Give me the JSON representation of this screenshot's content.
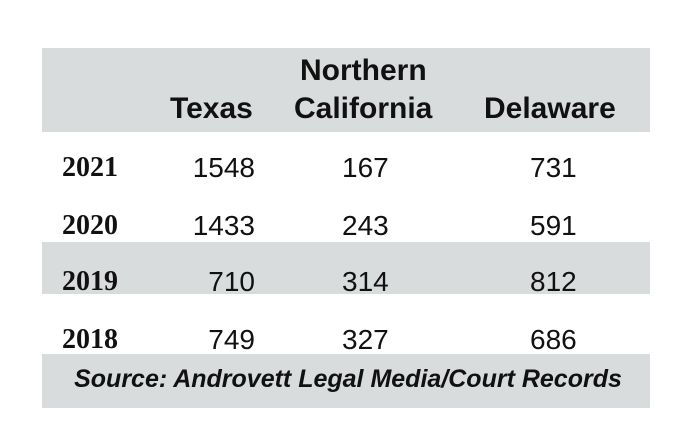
{
  "chart_data": {
    "type": "table",
    "columns": [
      "",
      "Texas",
      "Northern California",
      "Delaware"
    ],
    "header_lines": {
      "texas": "Texas",
      "nc_line1": "Northern",
      "nc_line2": "California",
      "delaware": "Delaware"
    },
    "rows": [
      {
        "year": "2021",
        "texas": "1548",
        "northern_california": "167",
        "delaware": "731"
      },
      {
        "year": "2020",
        "texas": "1433",
        "northern_california": "243",
        "delaware": "591"
      },
      {
        "year": "2019",
        "texas": "710",
        "northern_california": "314",
        "delaware": "812"
      },
      {
        "year": "2018",
        "texas": "749",
        "northern_california": "327",
        "delaware": "686"
      }
    ],
    "source": "Source: Androvett Legal Media/Court Records"
  },
  "colors": {
    "band": "#d9dcdd",
    "text": "#111111",
    "background": "#ffffff"
  }
}
